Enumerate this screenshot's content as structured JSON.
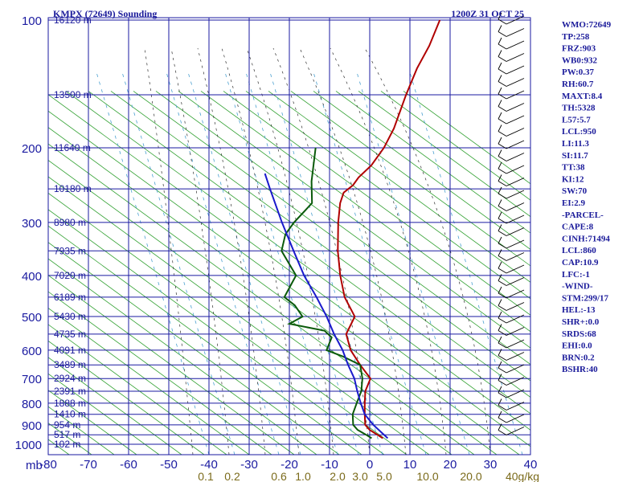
{
  "chart_data": {
    "type": "line",
    "title": "KMPX (72649) Sounding",
    "valid_time": "1200Z 31 OCT 25",
    "pressure_axis_label": "mb",
    "pressure_ticks": [
      "100",
      "200",
      "300",
      "400",
      "500",
      "600",
      "700",
      "800",
      "900",
      "1000"
    ],
    "temperature_ticks": [
      "-80",
      "-70",
      "-60",
      "-50",
      "-40",
      "-30",
      "-20",
      "-10",
      "0",
      "10",
      "20",
      "30",
      "40"
    ],
    "mixing_ratio_ticks": [
      "0.1",
      "0.2",
      "0.6",
      "1.0",
      "2.0",
      "3.0",
      "5.0",
      "10.0",
      "20.0",
      "40g/kg"
    ],
    "height_labels": [
      {
        "p": 100,
        "text": "16120 m"
      },
      {
        "p": 150,
        "text": "13500 m"
      },
      {
        "p": 200,
        "text": "11640 m"
      },
      {
        "p": 250,
        "text": "10180 m"
      },
      {
        "p": 300,
        "text": "8980 m"
      },
      {
        "p": 350,
        "text": "7935 m"
      },
      {
        "p": 400,
        "text": "7020 m"
      },
      {
        "p": 450,
        "text": "6189 m"
      },
      {
        "p": 500,
        "text": "5430 m"
      },
      {
        "p": 550,
        "text": "4735 m"
      },
      {
        "p": 600,
        "text": "4091 m"
      },
      {
        "p": 650,
        "text": "3489 m"
      },
      {
        "p": 700,
        "text": "2924 m"
      },
      {
        "p": 750,
        "text": "2391 m"
      },
      {
        "p": 800,
        "text": "1888 m"
      },
      {
        "p": 850,
        "text": "1410 m"
      },
      {
        "p": 900,
        "text": "954 m"
      },
      {
        "p": 950,
        "text": "517 m"
      },
      {
        "p": 1000,
        "text": "102 m"
      }
    ],
    "series": [
      {
        "key": "temperature",
        "color": "#b00000",
        "points": [
          [
            968,
            0.8
          ],
          [
            925,
            -4
          ],
          [
            900,
            -6
          ],
          [
            850,
            -8
          ],
          [
            800,
            -10
          ],
          [
            750,
            -12
          ],
          [
            700,
            -13
          ],
          [
            650,
            -18
          ],
          [
            600,
            -23
          ],
          [
            550,
            -27
          ],
          [
            500,
            -28
          ],
          [
            450,
            -34
          ],
          [
            400,
            -39
          ],
          [
            350,
            -44
          ],
          [
            300,
            -49
          ],
          [
            270,
            -52
          ],
          [
            255,
            -53
          ],
          [
            245,
            -52
          ],
          [
            235,
            -52
          ],
          [
            220,
            -51
          ],
          [
            200,
            -51
          ],
          [
            180,
            -52
          ],
          [
            150,
            -55
          ],
          [
            130,
            -57
          ],
          [
            115,
            -58
          ],
          [
            100,
            -60
          ]
        ]
      },
      {
        "key": "dewpoint",
        "color": "#0a5a0a",
        "points": [
          [
            968,
            -2
          ],
          [
            950,
            -4
          ],
          [
            925,
            -7
          ],
          [
            900,
            -9
          ],
          [
            850,
            -11
          ],
          [
            800,
            -12
          ],
          [
            750,
            -13
          ],
          [
            700,
            -15
          ],
          [
            650,
            -18
          ],
          [
            620,
            -24
          ],
          [
            600,
            -29
          ],
          [
            560,
            -30
          ],
          [
            540,
            -33
          ],
          [
            520,
            -43
          ],
          [
            500,
            -41
          ],
          [
            470,
            -45
          ],
          [
            450,
            -49
          ],
          [
            400,
            -50
          ],
          [
            350,
            -58
          ],
          [
            320,
            -60
          ],
          [
            300,
            -60
          ],
          [
            270,
            -59
          ],
          [
            240,
            -63
          ],
          [
            200,
            -68
          ]
        ]
      },
      {
        "key": "parcel",
        "color": "#1a1acc",
        "points": [
          [
            968,
            2
          ],
          [
            900,
            -4
          ],
          [
            850,
            -8
          ],
          [
            800,
            -11
          ],
          [
            750,
            -14
          ],
          [
            700,
            -17
          ],
          [
            650,
            -21
          ],
          [
            600,
            -25
          ],
          [
            550,
            -30
          ],
          [
            500,
            -35
          ],
          [
            450,
            -41
          ],
          [
            400,
            -48
          ],
          [
            350,
            -55
          ],
          [
            300,
            -63
          ],
          [
            250,
            -72
          ],
          [
            230,
            -76
          ]
        ]
      }
    ],
    "indices": [
      "WMO:72649",
      "TP:258",
      "FRZ:903",
      "WB0:932",
      "PW:0.37",
      "RH:60.7",
      "MAXT:8.4",
      "TH:5328",
      "L57:5.7",
      "LCL:950",
      "LI:11.3",
      "SI:11.7",
      "TT:38",
      "KI:12",
      "SW:70",
      "EI:2.9",
      "-PARCEL-",
      "CAPE:8",
      "CINH:71494",
      "LCL:860",
      "CAP:10.9",
      "LFC:-1",
      "-WIND-",
      "STM:299/17",
      "HEL:-13",
      "SHR+:0.0",
      "SRDS:68",
      "EHI:0.0",
      "BRN:0.2",
      "BSHR:40"
    ],
    "colors": {
      "isobar": "#1a1aa0",
      "isotherm": "#1a1aa0",
      "dry_adiabat": "#30a030",
      "moist_adiabat": "#303030",
      "mixing_ratio": "#4aa0d0",
      "wind_barb": "#000000"
    }
  }
}
